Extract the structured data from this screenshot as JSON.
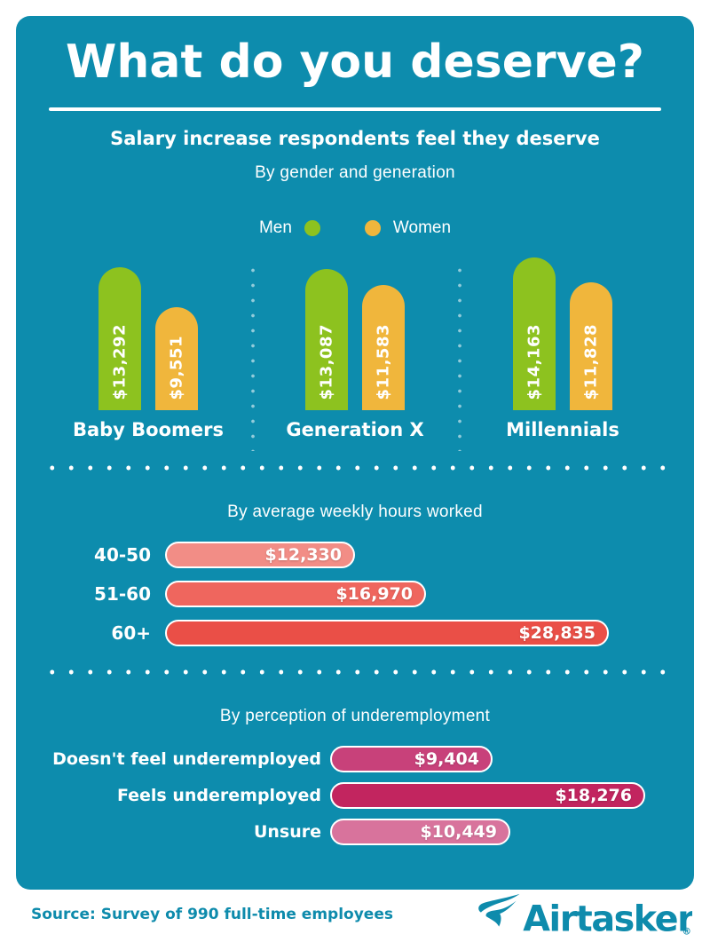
{
  "header": {
    "title": "What do you deserve?",
    "subtitle": "Salary increase respondents feel they deserve"
  },
  "colors": {
    "background_teal": "#0d8cad",
    "brand_teal": "#0e8bac",
    "men_green": "#8dc21f",
    "women_orange": "#f0b63c"
  },
  "chart_data": [
    {
      "type": "bar",
      "title": "By gender and generation",
      "legend": [
        {
          "label": "Men",
          "color": "#8dc21f"
        },
        {
          "label": "Women",
          "color": "#f0b63c"
        }
      ],
      "categories": [
        "Baby Boomers",
        "Generation X",
        "Millennials"
      ],
      "series": [
        {
          "name": "Men",
          "color": "#8dc21f",
          "values": [
            13292,
            13087,
            14163
          ],
          "labels": [
            "$13,292",
            "$13,087",
            "$14,163"
          ]
        },
        {
          "name": "Women",
          "color": "#f0b63c",
          "values": [
            9551,
            11583,
            11828
          ],
          "labels": [
            "$9,551",
            "$11,583",
            "$11,828"
          ]
        }
      ],
      "ylim": [
        0,
        14163
      ],
      "legend_position": "top"
    },
    {
      "type": "bar",
      "orientation": "horizontal",
      "title": "By average weekly hours worked",
      "categories": [
        "40-50",
        "51-60",
        "60+"
      ],
      "values": [
        12330,
        16970,
        28835
      ],
      "labels": [
        "$12,330",
        "$16,970",
        "$28,835"
      ],
      "colors": [
        "#f28d86",
        "#ef665e",
        "#ea4f47"
      ],
      "xlim": [
        0,
        28835
      ]
    },
    {
      "type": "bar",
      "orientation": "horizontal",
      "title": "By perception of underemployment",
      "categories": [
        "Doesn't feel underemployed",
        "Feels underemployed",
        "Unsure"
      ],
      "values": [
        9404,
        18276,
        10449
      ],
      "labels": [
        "$9,404",
        "$18,276",
        "$10,449"
      ],
      "colors": [
        "#c8417a",
        "#c2255f",
        "#d8739c"
      ],
      "xlim": [
        0,
        18276
      ]
    }
  ],
  "footer": {
    "source": "Source: Survey of 990 full-time employees",
    "brand": "Airtasker",
    "brand_mark": "®"
  }
}
